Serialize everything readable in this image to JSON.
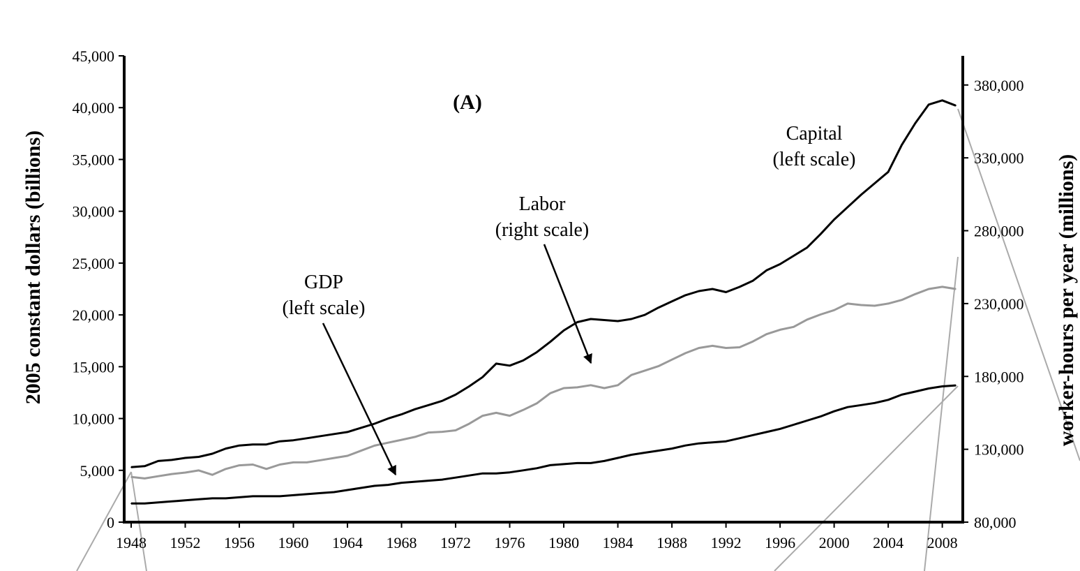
{
  "chart_data": {
    "type": "line",
    "title": "",
    "panel_label": "(A)",
    "ylabel_left": "2005 constant dollars (billions)",
    "ylabel_right": "worker-hours per year (millions)",
    "xlim": [
      1948,
      2009
    ],
    "ylim_left": [
      0,
      45000
    ],
    "ylim_right": [
      80000,
      400000
    ],
    "x_ticks": [
      "1948",
      "1952",
      "1956",
      "1960",
      "1964",
      "1968",
      "1972",
      "1976",
      "1980",
      "1984",
      "1988",
      "1992",
      "1996",
      "2000",
      "2004",
      "2008"
    ],
    "y_left_ticks": [
      "0",
      "5,000",
      "10,000",
      "15,000",
      "20,000",
      "25,000",
      "30,000",
      "35,000",
      "40,000",
      "45,000"
    ],
    "y_right_ticks": [
      "80,000",
      "130,000",
      "180,000",
      "230,000",
      "280,000",
      "330,000",
      "380,000"
    ],
    "grid": false,
    "colors": {
      "capital": "#000000",
      "gdp": "#000000",
      "labor": "#999999",
      "lens": "#aaaaaa"
    },
    "series": [
      {
        "name": "Capital",
        "axis": "left",
        "x": [
          1948,
          1949,
          1950,
          1951,
          1952,
          1953,
          1954,
          1955,
          1956,
          1957,
          1958,
          1959,
          1960,
          1961,
          1962,
          1963,
          1964,
          1965,
          1966,
          1967,
          1968,
          1969,
          1970,
          1971,
          1972,
          1973,
          1974,
          1975,
          1976,
          1977,
          1978,
          1979,
          1980,
          1981,
          1982,
          1983,
          1984,
          1985,
          1986,
          1987,
          1988,
          1989,
          1990,
          1991,
          1992,
          1993,
          1994,
          1995,
          1996,
          1997,
          1998,
          1999,
          2000,
          2001,
          2002,
          2003,
          2004,
          2005,
          2006,
          2007,
          2008,
          2009
        ],
        "y": [
          5300,
          5400,
          5900,
          6000,
          6200,
          6300,
          6600,
          7100,
          7400,
          7500,
          7500,
          7800,
          7900,
          8100,
          8300,
          8500,
          8700,
          9100,
          9500,
          10000,
          10400,
          10900,
          11300,
          11700,
          12300,
          13100,
          14000,
          15300,
          15100,
          15600,
          16400,
          17400,
          18500,
          19300,
          19600,
          19500,
          19400,
          19600,
          20000,
          20700,
          21300,
          21900,
          22300,
          22500,
          22200,
          22700,
          23300,
          24300,
          24900,
          25700,
          26500,
          27800,
          29200,
          30400,
          31600,
          32700,
          33800,
          36400,
          38500,
          40300,
          40700,
          40200
        ]
      },
      {
        "name": "Labor",
        "axis": "right",
        "x": [
          1948,
          1949,
          1950,
          1951,
          1952,
          1953,
          1954,
          1955,
          1956,
          1957,
          1958,
          1959,
          1960,
          1961,
          1962,
          1963,
          1964,
          1965,
          1966,
          1967,
          1968,
          1969,
          1970,
          1971,
          1972,
          1973,
          1974,
          1975,
          1976,
          1977,
          1978,
          1979,
          1980,
          1981,
          1982,
          1983,
          1984,
          1985,
          1986,
          1987,
          1988,
          1989,
          1990,
          1991,
          1992,
          1993,
          1994,
          1995,
          1996,
          1997,
          1998,
          1999,
          2000,
          2001,
          2002,
          2003,
          2004,
          2005,
          2006,
          2007,
          2008,
          2009
        ],
        "y": [
          111000,
          110000,
          111500,
          113000,
          114000,
          115500,
          112500,
          116500,
          119000,
          119500,
          116500,
          119500,
          121000,
          121000,
          122500,
          124000,
          125500,
          129000,
          132500,
          134500,
          136500,
          138500,
          141500,
          142000,
          143000,
          147500,
          153000,
          155000,
          153000,
          157000,
          161500,
          168500,
          172000,
          172500,
          174000,
          172000,
          174000,
          181000,
          184000,
          187000,
          191500,
          196000,
          199500,
          201000,
          199500,
          200000,
          204000,
          209000,
          212000,
          214000,
          219000,
          222500,
          225500,
          230000,
          229000,
          228500,
          230000,
          232500,
          236500,
          240000,
          241500,
          240000
        ]
      },
      {
        "name": "GDP",
        "axis": "left",
        "x": [
          1948,
          1949,
          1950,
          1951,
          1952,
          1953,
          1954,
          1955,
          1956,
          1957,
          1958,
          1959,
          1960,
          1961,
          1962,
          1963,
          1964,
          1965,
          1966,
          1967,
          1968,
          1969,
          1970,
          1971,
          1972,
          1973,
          1974,
          1975,
          1976,
          1977,
          1978,
          1979,
          1980,
          1981,
          1982,
          1983,
          1984,
          1985,
          1986,
          1987,
          1988,
          1989,
          1990,
          1991,
          1992,
          1993,
          1994,
          1995,
          1996,
          1997,
          1998,
          1999,
          2000,
          2001,
          2002,
          2003,
          2004,
          2005,
          2006,
          2007,
          2008,
          2009
        ],
        "y": [
          1800,
          1800,
          1900,
          2000,
          2100,
          2200,
          2300,
          2300,
          2400,
          2500,
          2500,
          2500,
          2600,
          2700,
          2800,
          2900,
          3100,
          3300,
          3500,
          3600,
          3800,
          3900,
          4000,
          4100,
          4300,
          4500,
          4700,
          4700,
          4800,
          5000,
          5200,
          5500,
          5600,
          5700,
          5700,
          5900,
          6200,
          6500,
          6700,
          6900,
          7100,
          7400,
          7600,
          7700,
          7800,
          8100,
          8400,
          8700,
          9000,
          9400,
          9800,
          10200,
          10700,
          11100,
          11300,
          11500,
          11800,
          12300,
          12600,
          12900,
          13100,
          13200
        ]
      }
    ],
    "annotations": [
      {
        "id": "capital",
        "lines": [
          "Capital",
          "(left scale)"
        ]
      },
      {
        "id": "labor",
        "lines": [
          "Labor",
          "(right scale)"
        ]
      },
      {
        "id": "gdp",
        "lines": [
          "GDP",
          "(left scale)"
        ]
      }
    ]
  }
}
